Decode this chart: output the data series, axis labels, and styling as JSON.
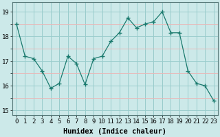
{
  "x": [
    0,
    1,
    2,
    3,
    4,
    5,
    6,
    7,
    8,
    9,
    10,
    11,
    12,
    13,
    14,
    15,
    16,
    17,
    18,
    19,
    20,
    21,
    22,
    23
  ],
  "y": [
    18.5,
    17.2,
    17.1,
    16.6,
    15.9,
    16.1,
    17.2,
    16.9,
    16.05,
    17.1,
    17.2,
    17.8,
    18.15,
    18.75,
    18.35,
    18.5,
    18.6,
    19.0,
    18.15,
    18.15,
    16.6,
    16.1,
    16.0,
    15.4
  ],
  "line_color": "#1a7a6e",
  "marker": "+",
  "marker_size": 4,
  "bg_color": "#cce9e9",
  "grid_major_color": "#99cccc",
  "grid_minor_color": "#e8b8b8",
  "xlabel": "Humidex (Indice chaleur)",
  "ylim": [
    14.8,
    19.4
  ],
  "xlim": [
    -0.5,
    23.5
  ],
  "yticks": [
    15,
    16,
    17,
    18,
    19
  ],
  "xticks": [
    0,
    1,
    2,
    3,
    4,
    5,
    6,
    7,
    8,
    9,
    10,
    11,
    12,
    13,
    14,
    15,
    16,
    17,
    18,
    19,
    20,
    21,
    22,
    23
  ],
  "xlabel_fontsize": 7.5,
  "tick_fontsize": 6.5
}
